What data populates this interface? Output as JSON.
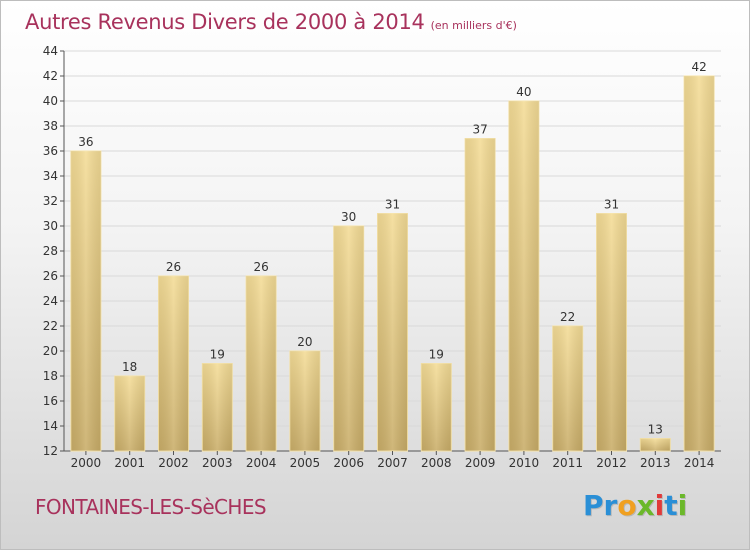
{
  "chart_data": {
    "type": "bar",
    "title": "Autres Revenus Divers de 2000 à 2014",
    "subtitle": "(en milliers d'€)",
    "categories": [
      "2000",
      "2001",
      "2002",
      "2003",
      "2004",
      "2005",
      "2006",
      "2007",
      "2008",
      "2009",
      "2010",
      "2011",
      "2012",
      "2013",
      "2014"
    ],
    "values": [
      36,
      18,
      26,
      19,
      26,
      20,
      30,
      31,
      19,
      37,
      40,
      22,
      31,
      13,
      42
    ],
    "ylim": [
      12,
      44
    ],
    "yticks": [
      12,
      14,
      16,
      18,
      20,
      22,
      24,
      26,
      28,
      30,
      32,
      34,
      36,
      38,
      40,
      42,
      44
    ],
    "grid": true,
    "legend": "none",
    "bar_color": "#e8cf85"
  },
  "footer": {
    "commune": "FONTAINES-LES-SèCHES",
    "logo_letters": [
      {
        "ch": "P",
        "color": "#2a8fd6"
      },
      {
        "ch": "r",
        "color": "#2a8fd6"
      },
      {
        "ch": "o",
        "color": "#f0a020"
      },
      {
        "ch": "x",
        "color": "#6bb82a"
      },
      {
        "ch": "i",
        "color": "#e03a3a"
      },
      {
        "ch": "t",
        "color": "#2a8fd6"
      },
      {
        "ch": "i",
        "color": "#6bb82a"
      }
    ]
  },
  "colors": {
    "title": "#a8325c",
    "grid": "#d9d9d9"
  }
}
